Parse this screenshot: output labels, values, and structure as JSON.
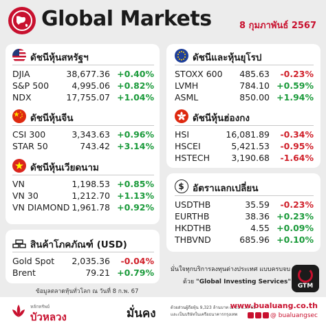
{
  "header": {
    "title": "Global Markets",
    "date": "8 กุมภาพันธ์ 2567"
  },
  "sections": {
    "us": {
      "title": "ดัชนีหุ้นสหรัฐฯ",
      "icon": "us-flag-icon",
      "rows": [
        {
          "name": "DJIA",
          "value": "38,677.36",
          "change": "+0.40%",
          "dir": "up"
        },
        {
          "name": "S&P 500",
          "value": "4,995.06",
          "change": "+0.82%",
          "dir": "up"
        },
        {
          "name": "NDX",
          "value": "17,755.07",
          "change": "+1.04%",
          "dir": "up"
        }
      ]
    },
    "china": {
      "title": "ดัชนีหุ้นจีน",
      "icon": "china-flag-icon",
      "rows": [
        {
          "name": "CSI 300",
          "value": "3,343.63",
          "change": "+0.96%",
          "dir": "up"
        },
        {
          "name": "STAR 50",
          "value": "743.42",
          "change": "+3.14%",
          "dir": "up"
        }
      ]
    },
    "vietnam": {
      "title": "ดัชนีหุ้นเวียดนาม",
      "icon": "vietnam-flag-icon",
      "rows": [
        {
          "name": "VN",
          "value": "1,198.53",
          "change": "+0.85%",
          "dir": "up"
        },
        {
          "name": "VN 30",
          "value": "1,212.70",
          "change": "+1.13%",
          "dir": "up"
        },
        {
          "name": "VN DIAMOND",
          "value": "1,961.78",
          "change": "+0.92%",
          "dir": "up"
        }
      ]
    },
    "commodity": {
      "title": "สินค้าโภคภัณฑ์ (USD)",
      "icon": "gold-bars-icon",
      "rows": [
        {
          "name": "Gold Spot",
          "value": "2,035.36",
          "change": "-0.04%",
          "dir": "down"
        },
        {
          "name": "Brent",
          "value": "79.21",
          "change": "+0.79%",
          "dir": "up"
        }
      ]
    },
    "europe": {
      "title": "ดัชนีและหุ้นยุโรป",
      "icon": "eu-flag-icon",
      "rows": [
        {
          "name": "STOXX 600",
          "value": "485.63",
          "change": "-0.23%",
          "dir": "down"
        },
        {
          "name": "LVMH",
          "value": "784.10",
          "change": "+0.59%",
          "dir": "up"
        },
        {
          "name": "ASML",
          "value": "850.00",
          "change": "+1.94%",
          "dir": "up"
        }
      ]
    },
    "hongkong": {
      "title": "ดัชนีหุ้นฮ่องกง",
      "icon": "hongkong-flag-icon",
      "rows": [
        {
          "name": "HSI",
          "value": "16,081.89",
          "change": "-0.34%",
          "dir": "down"
        },
        {
          "name": "HSCEI",
          "value": "5,421.53",
          "change": "-0.95%",
          "dir": "down"
        },
        {
          "name": "HSTECH",
          "value": "3,190.68",
          "change": "-1.64%",
          "dir": "down"
        }
      ]
    },
    "fx": {
      "title": "อัตราแลกเปลี่ยน",
      "icon": "dollar-sign-icon",
      "rows": [
        {
          "name": "USDTHB",
          "value": "35.59",
          "change": "-0.23%",
          "dir": "down"
        },
        {
          "name": "EURTHB",
          "value": "38.36",
          "change": "+0.23%",
          "dir": "up"
        },
        {
          "name": "HKDTHB",
          "value": "4.55",
          "change": "+0.09%",
          "dir": "up"
        },
        {
          "name": "THBVND",
          "value": "685.96",
          "change": "+0.10%",
          "dir": "up"
        }
      ]
    }
  },
  "note": "ข้อมูลตลาดหุ้นทั่วโลก ณ วันที่ 8 ก.พ. 67",
  "promo": {
    "line1": "มั่นใจทุกบริการลงทุนต่างประเทศ แบบครบจบ",
    "line2_prefix": "ด้วย",
    "line2_highlight": "\"Global Investing Services\"",
    "badge": "GTM"
  },
  "footer": {
    "logo_small": "หลักทรัพย์",
    "logo_big": "บัวหลวง",
    "tagline": "มั่นคง",
    "fine1": "ด้วยส่วนผู้ถือหุ้น 9,323 ล้านบาท ณ 31 ธ.ค. 65",
    "fine2": "และเป็นบริษัทในเครือธนาคารกรุงเทพ",
    "website": "www.bualuang.co.th",
    "social": "@ bualuangsec"
  },
  "colors": {
    "accent": "#c8102e",
    "up": "#1a9a3a",
    "down": "#d0202a",
    "card": "#ffffff",
    "background": "#ececec"
  }
}
